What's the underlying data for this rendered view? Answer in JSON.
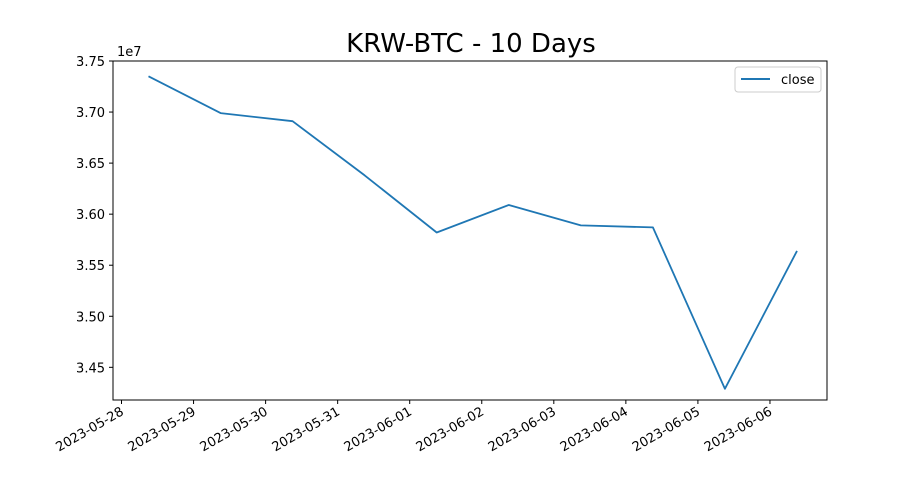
{
  "chart_data": {
    "type": "line",
    "title": "KRW-BTC - 10 Days",
    "xlabel": "",
    "ylabel": "",
    "y_offset_text": "1e7",
    "x_ticks": [
      "2023-05-28",
      "2023-05-29",
      "2023-05-30",
      "2023-05-31",
      "2023-06-01",
      "2023-06-02",
      "2023-06-03",
      "2023-06-04",
      "2023-06-05",
      "2023-06-06"
    ],
    "y_ticks": [
      "3.45",
      "3.50",
      "3.55",
      "3.60",
      "3.65",
      "3.70",
      "3.75"
    ],
    "y_tick_values": [
      3.45,
      3.5,
      3.55,
      3.6,
      3.65,
      3.7,
      3.75
    ],
    "x_range": [
      "2023-05-27 21:10",
      "2023-06-06 19:00"
    ],
    "ylim": [
      3.418,
      3.75
    ],
    "legend": {
      "position": "top-right",
      "entries": [
        "close"
      ]
    },
    "grid": false,
    "series": [
      {
        "name": "close",
        "color": "#1f77b4",
        "x": [
          "2023-05-28 09:00",
          "2023-05-29 09:00",
          "2023-05-30 09:00",
          "2023-05-31 09:00",
          "2023-06-01 09:00",
          "2023-06-02 09:00",
          "2023-06-03 09:00",
          "2023-06-04 09:00",
          "2023-06-05 09:00",
          "2023-06-06 09:00"
        ],
        "values": [
          3.735,
          3.699,
          3.691,
          3.638,
          3.582,
          3.609,
          3.589,
          3.587,
          3.429,
          3.564
        ]
      }
    ]
  }
}
